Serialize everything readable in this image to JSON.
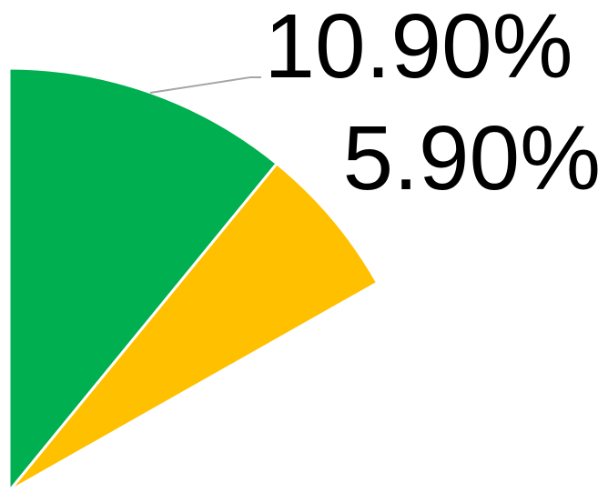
{
  "chart_data": {
    "type": "pie",
    "values": [
      10.9,
      5.9
    ],
    "value_labels": [
      "10.90%",
      "5.90%"
    ],
    "colors": [
      "#00b050",
      "#ffc000"
    ]
  }
}
